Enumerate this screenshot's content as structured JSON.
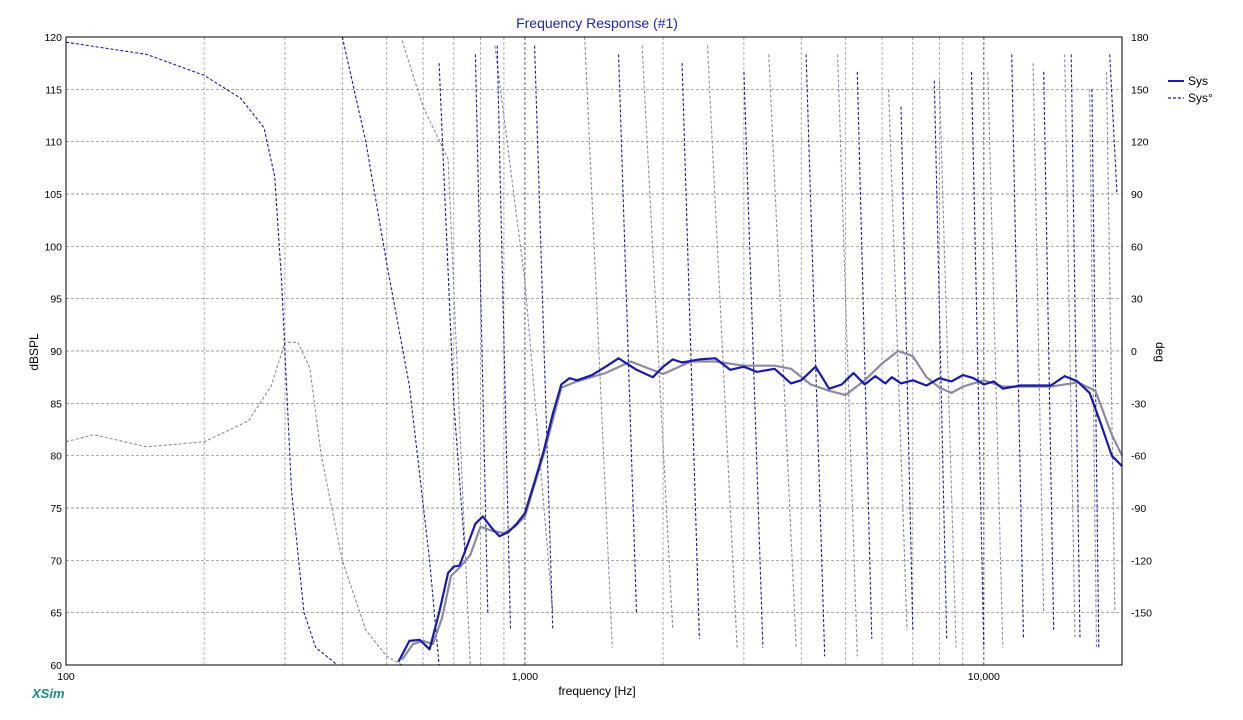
{
  "window": {
    "brand": "XSim"
  },
  "chart_data": {
    "type": "line",
    "title": "Frequency Response (#1)",
    "xlabel": "frequency [Hz]",
    "ylabel": "dBSPL",
    "y2label": "deg",
    "xscale": "log",
    "xlim": [
      100,
      20000
    ],
    "ylim": [
      60,
      120
    ],
    "y2lim": [
      -180,
      180
    ],
    "x_tick_labels": [
      {
        "value": 100,
        "label": "100"
      },
      {
        "value": 1000,
        "label": "1,000"
      },
      {
        "value": 10000,
        "label": "10,000"
      }
    ],
    "y_ticks": [
      60,
      65,
      70,
      75,
      80,
      85,
      90,
      95,
      100,
      105,
      110,
      115,
      120
    ],
    "y2_ticks": [
      -150,
      -120,
      -90,
      -60,
      -30,
      0,
      30,
      60,
      90,
      120,
      150,
      180
    ],
    "grid": true,
    "legend_position": "top-right",
    "legend": [
      {
        "label": "Sys",
        "style": "solid",
        "color": "#1a1aa8"
      },
      {
        "label": "Sys°",
        "style": "dashed",
        "color": "#1a1aa8"
      }
    ],
    "series": [
      {
        "name": "Sys",
        "kind": "magnitude",
        "axis": "left",
        "color": "#1a1aa8",
        "x": [
          530,
          560,
          590,
          620,
          650,
          680,
          700,
          720,
          750,
          780,
          810,
          850,
          880,
          920,
          960,
          1000,
          1050,
          1100,
          1150,
          1200,
          1250,
          1300,
          1400,
          1500,
          1600,
          1750,
          1900,
          2000,
          2100,
          2200,
          2400,
          2600,
          2800,
          3000,
          3200,
          3500,
          3800,
          4000,
          4300,
          4600,
          4900,
          5200,
          5500,
          5800,
          6100,
          6300,
          6600,
          7000,
          7500,
          8000,
          8500,
          9000,
          9500,
          10000,
          10500,
          11000,
          12000,
          13000,
          14000,
          15000,
          16000,
          17000,
          18000,
          19000,
          20000
        ],
        "values": [
          60.3,
          62.3,
          62.4,
          61.5,
          65.0,
          68.8,
          69.4,
          69.5,
          71.5,
          73.5,
          74.2,
          73.0,
          72.3,
          72.7,
          73.5,
          74.5,
          77.5,
          80.5,
          84.0,
          86.8,
          87.4,
          87.2,
          87.7,
          88.5,
          89.3,
          88.2,
          87.5,
          88.5,
          89.2,
          88.9,
          89.2,
          89.3,
          88.2,
          88.5,
          88.0,
          88.3,
          86.9,
          87.2,
          88.5,
          86.4,
          86.8,
          87.9,
          86.8,
          87.6,
          86.9,
          87.5,
          86.9,
          87.2,
          86.7,
          87.4,
          87.1,
          87.7,
          87.4,
          86.8,
          87.1,
          86.4,
          86.7,
          86.7,
          86.7,
          87.6,
          87.1,
          86.0,
          83.0,
          80.0,
          79.0
        ]
      },
      {
        "name": "Sys",
        "kind": "magnitude-reference",
        "axis": "left",
        "color": "#8a8aa0",
        "x": [
          540,
          570,
          600,
          630,
          660,
          690,
          720,
          760,
          800,
          850,
          900,
          950,
          1000,
          1100,
          1200,
          1300,
          1500,
          1700,
          2000,
          2300,
          2600,
          3000,
          3500,
          3800,
          4200,
          4600,
          5000,
          5500,
          6000,
          6500,
          7000,
          7500,
          8000,
          8500,
          9000,
          10000,
          11000,
          12000,
          14000,
          16000,
          17500,
          19000,
          20000
        ],
        "values": [
          60.5,
          62.0,
          62.3,
          62.0,
          64.5,
          68.5,
          69.3,
          70.5,
          73.2,
          72.8,
          72.6,
          73.2,
          74.2,
          80.2,
          86.5,
          87.1,
          87.9,
          89.0,
          87.8,
          89.0,
          89.0,
          88.6,
          88.6,
          88.3,
          86.8,
          86.2,
          85.8,
          87.2,
          88.8,
          90.0,
          89.5,
          87.5,
          86.5,
          86.0,
          86.6,
          87.2,
          86.6,
          86.6,
          86.6,
          87.0,
          86.2,
          82.0,
          80.0
        ]
      },
      {
        "name": "Sys°",
        "kind": "phase",
        "axis": "right",
        "style": "dashed",
        "color": "#1a1aa8",
        "segments": [
          {
            "x": [
              100,
              150,
              200,
              240,
              270,
              285,
              295,
              310,
              330,
              350,
              370,
              390
            ],
            "values": [
              177,
              170,
              158,
              145,
              128,
              100,
              40,
              -80,
              -150,
              -170,
              -175,
              -180
            ]
          },
          {
            "x": [
              400,
              450,
              500,
              560,
              620,
              650
            ],
            "values": [
              180,
              120,
              50,
              -20,
              -120,
              -180
            ]
          },
          {
            "x": [
              650,
              700,
              740
            ],
            "values": [
              165,
              -30,
              -115
            ]
          },
          {
            "x": [
              780,
              830
            ],
            "values": [
              170,
              -150
            ]
          },
          {
            "x": [
              870,
              930
            ],
            "values": [
              175,
              -160
            ]
          },
          {
            "x": [
              1050,
              1150
            ],
            "values": [
              175,
              -160
            ]
          },
          {
            "x": [
              1600,
              1750
            ],
            "values": [
              170,
              -150
            ]
          },
          {
            "x": [
              2200,
              2400
            ],
            "values": [
              165,
              -165
            ]
          },
          {
            "x": [
              3000,
              3300
            ],
            "values": [
              160,
              -170
            ]
          },
          {
            "x": [
              4100,
              4500
            ],
            "values": [
              170,
              -175
            ]
          },
          {
            "x": [
              5300,
              5700
            ],
            "values": [
              160,
              -165
            ]
          },
          {
            "x": [
              6600,
              7000
            ],
            "values": [
              140,
              -160
            ]
          },
          {
            "x": [
              7800,
              8300
            ],
            "values": [
              155,
              -165
            ]
          },
          {
            "x": [
              9400,
              10000
            ],
            "values": [
              160,
              -170
            ]
          },
          {
            "x": [
              11500,
              12200
            ],
            "values": [
              170,
              -165
            ]
          },
          {
            "x": [
              13500,
              14200
            ],
            "values": [
              160,
              -160
            ]
          },
          {
            "x": [
              15500,
              16200
            ],
            "values": [
              170,
              -165
            ]
          },
          {
            "x": [
              17200,
              17800
            ],
            "values": [
              150,
              -170
            ]
          },
          {
            "x": [
              18800,
              19500
            ],
            "values": [
              170,
              90
            ]
          }
        ]
      },
      {
        "name": "Sys°",
        "kind": "phase-reference",
        "axis": "right",
        "style": "dashed",
        "color": "#8a8aa8",
        "segments": [
          {
            "x": [
              100,
              115,
              150,
              200,
              250,
              280,
              300,
              320,
              340,
              360,
              400,
              450,
              500,
              540
            ],
            "values": [
              -52,
              -48,
              -55,
              -52,
              -40,
              -20,
              5,
              5,
              -10,
              -60,
              -120,
              -160,
              -175,
              -180
            ]
          },
          {
            "x": [
              540,
              600,
              680,
              760
            ],
            "values": [
              178,
              140,
              110,
              -180
            ]
          },
          {
            "x": [
              860,
              1000,
              1150
            ],
            "values": [
              175,
              40,
              -150
            ]
          },
          {
            "x": [
              1350,
              1550
            ],
            "values": [
              180,
              -170
            ]
          },
          {
            "x": [
              1800,
              2100
            ],
            "values": [
              175,
              -160
            ]
          },
          {
            "x": [
              2500,
              2900
            ],
            "values": [
              175,
              -170
            ]
          },
          {
            "x": [
              3400,
              3900
            ],
            "values": [
              170,
              -170
            ]
          },
          {
            "x": [
              4800,
              5300
            ],
            "values": [
              170,
              -175
            ]
          },
          {
            "x": [
              6200,
              6800
            ],
            "values": [
              150,
              -160
            ]
          },
          {
            "x": [
              8000,
              8700
            ],
            "values": [
              155,
              -170
            ]
          },
          {
            "x": [
              10200,
              11000
            ],
            "values": [
              160,
              -170
            ]
          },
          {
            "x": [
              12800,
              13500
            ],
            "values": [
              165,
              -150
            ]
          },
          {
            "x": [
              15000,
              15800
            ],
            "values": [
              170,
              -165
            ]
          },
          {
            "x": [
              17000,
              17600
            ],
            "values": [
              150,
              -170
            ]
          },
          {
            "x": [
              18500,
              19300
            ],
            "values": [
              160,
              -150
            ]
          }
        ]
      }
    ]
  }
}
